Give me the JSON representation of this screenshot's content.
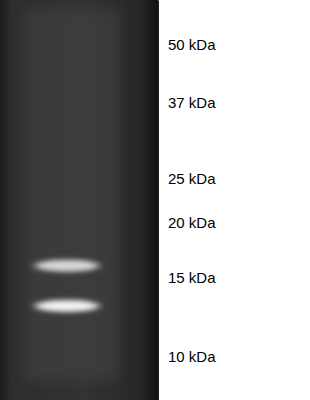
{
  "chart_data": {
    "type": "gel",
    "values": [
      16,
      13
    ],
    "log": "y",
    "ylim": [
      8,
      63
    ],
    "yticks": [
      {
        "value": 10,
        "label": "10 kDa"
      },
      {
        "value": 15,
        "label": "15 kDa"
      },
      {
        "value": 20,
        "label": "20 kDa"
      },
      {
        "value": 25,
        "label": "25 kDa"
      },
      {
        "value": 37,
        "label": "37 kDa"
      },
      {
        "value": 50,
        "label": "50 kDa"
      }
    ]
  }
}
